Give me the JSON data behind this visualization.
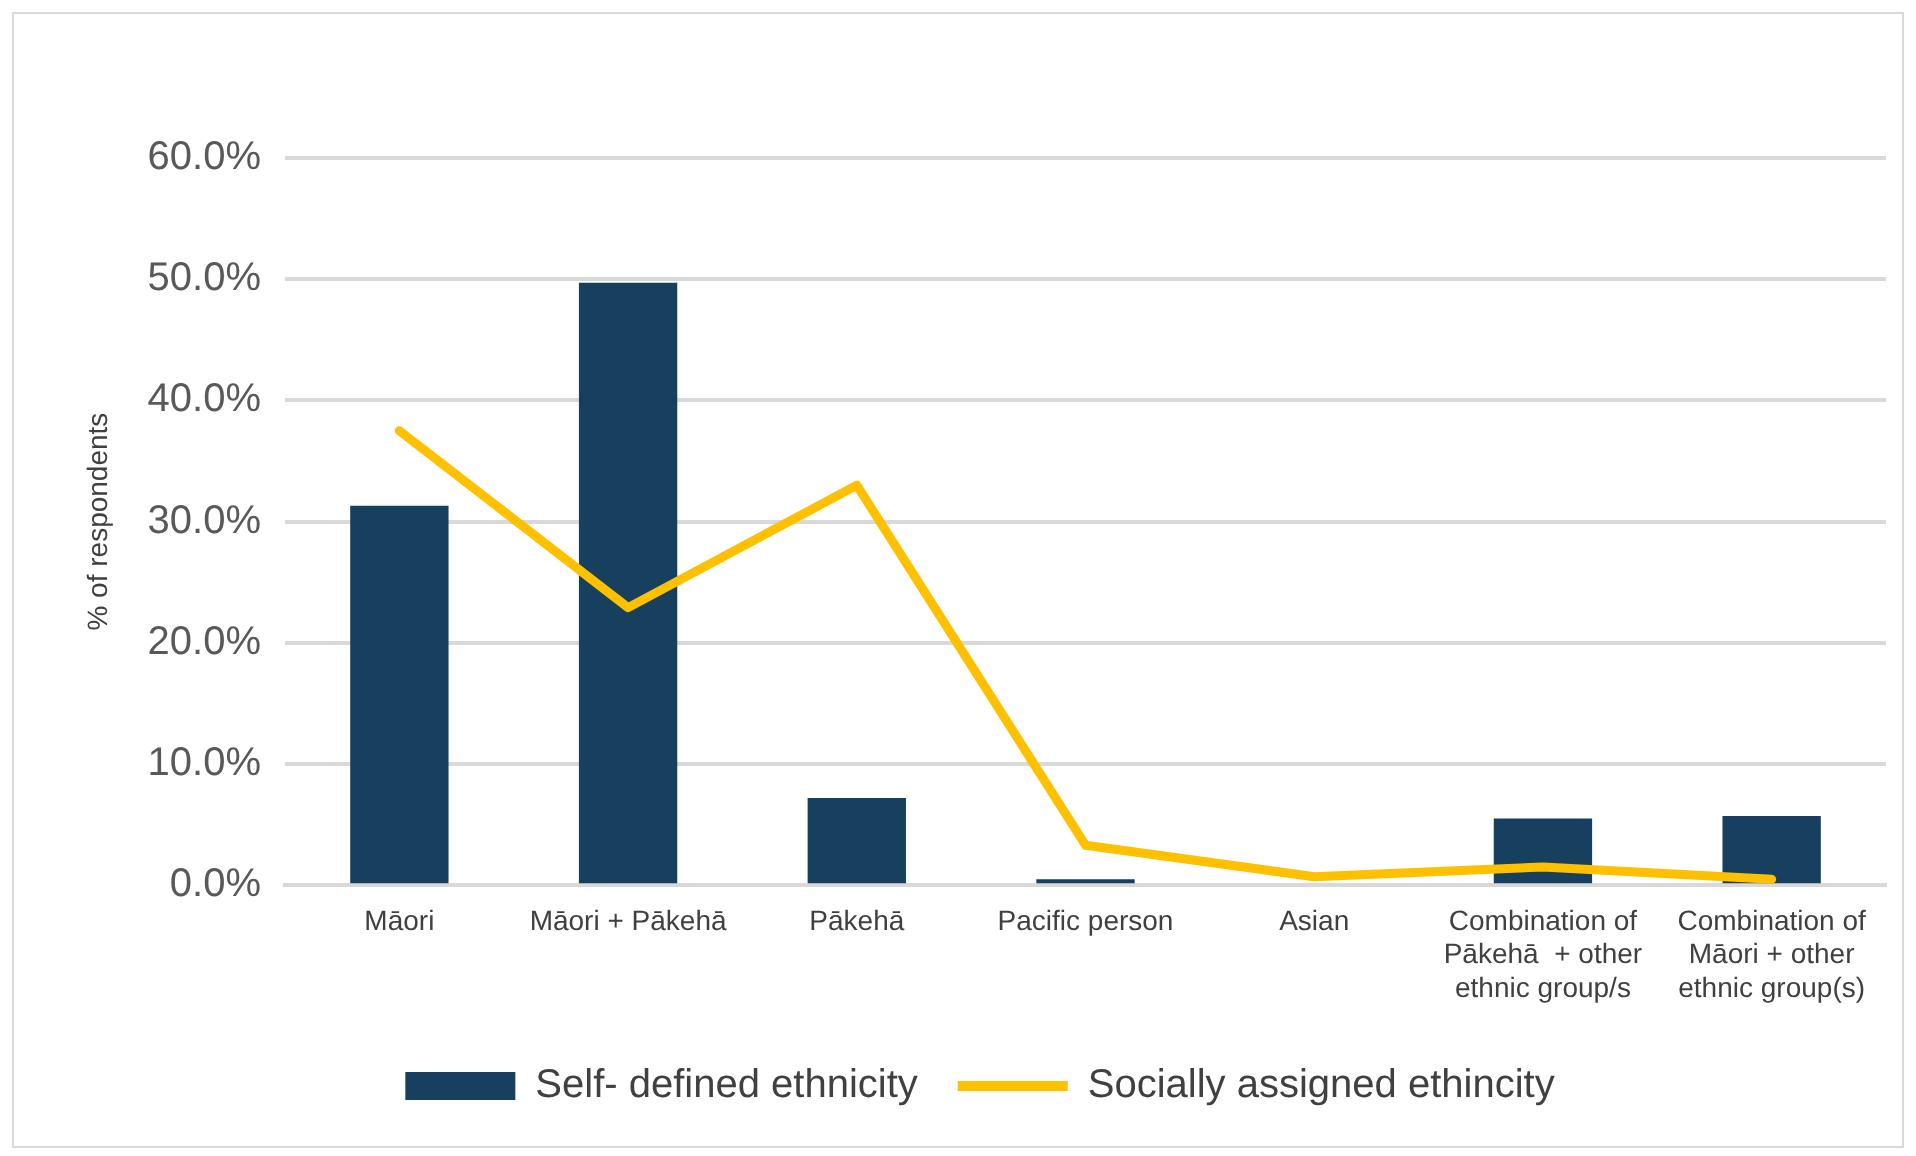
{
  "chart_data": {
    "type": "bar",
    "ylabel": "% of respondents",
    "categories": [
      "Māori",
      "Māori + Pākehā",
      "Pākehā",
      "Pacific person",
      "Asian",
      "Combination of Pākehā  + other ethnic group/s",
      "Combination of Māori + other ethnic group(s)"
    ],
    "series": [
      {
        "name": "Self- defined ethnicity",
        "color": "#17405f",
        "values": [
          31.3,
          49.7,
          7.2,
          0.5,
          0,
          5.5,
          5.7
        ]
      },
      {
        "name": "Socially assigned ethincity",
        "type": "line",
        "color": "#ffc000",
        "values": [
          37.5,
          22.9,
          33.0,
          3.3,
          0.7,
          1.5,
          0.5
        ]
      }
    ],
    "ylim": [
      0,
      60
    ],
    "yticks": [
      {
        "value": 0,
        "label": "0.0%"
      },
      {
        "value": 10,
        "label": "10.0%"
      },
      {
        "value": 20,
        "label": "20.0%"
      },
      {
        "value": 30,
        "label": "30.0%"
      },
      {
        "value": 40,
        "label": "40.0%"
      },
      {
        "value": 50,
        "label": "50.0%"
      },
      {
        "value": 60,
        "label": "60.0%"
      }
    ],
    "grid": "y",
    "legend": "bottom",
    "marker": "none",
    "line_style": "solid"
  }
}
